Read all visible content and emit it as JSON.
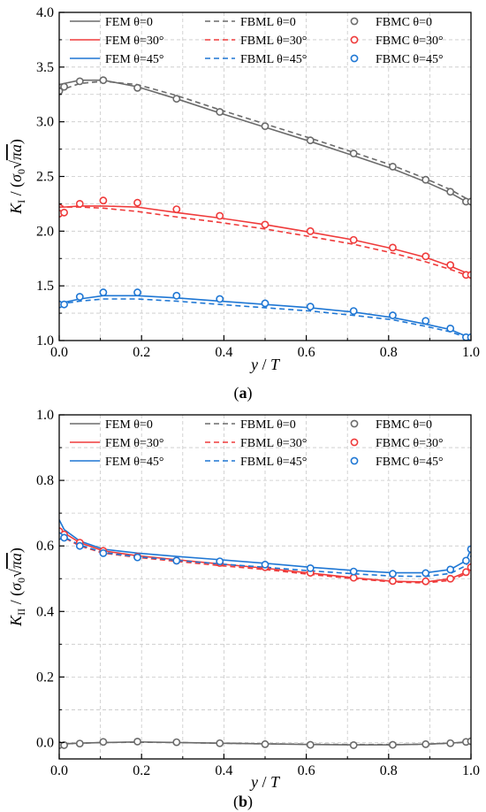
{
  "figure": {
    "panel_labels": [
      "(a)",
      "(b)"
    ]
  },
  "chart_data": [
    {
      "type": "line",
      "panel": "(a)",
      "xlabel": "y / T",
      "ylabel": "K_I / (σ0 √(πa))",
      "xlim": [
        0.0,
        1.0
      ],
      "ylim": [
        1.0,
        4.0
      ],
      "xticks": [
        "0.0",
        "0.2",
        "0.4",
        "0.6",
        "0.8",
        "1.0"
      ],
      "yticks": [
        "1.0",
        "1.5",
        "2.0",
        "2.5",
        "3.0",
        "3.5",
        "4.0"
      ],
      "grid": true,
      "legend_position": "top",
      "x": [
        0.0,
        0.012,
        0.05,
        0.107,
        0.19,
        0.285,
        0.39,
        0.5,
        0.61,
        0.715,
        0.81,
        0.89,
        0.95,
        0.988,
        1.0
      ],
      "series": [
        {
          "name": "FEM θ=0",
          "style": "solid",
          "color": "#6b6b6b",
          "values": [
            3.34,
            3.35,
            3.38,
            3.38,
            3.32,
            3.21,
            3.08,
            2.95,
            2.82,
            2.69,
            2.57,
            2.45,
            2.35,
            2.27,
            2.26
          ]
        },
        {
          "name": "FEM θ=30°",
          "style": "solid",
          "color": "#ef3b3b",
          "values": [
            2.22,
            2.22,
            2.23,
            2.23,
            2.22,
            2.17,
            2.12,
            2.06,
            1.99,
            1.92,
            1.84,
            1.76,
            1.68,
            1.62,
            1.61
          ]
        },
        {
          "name": "FEM θ=45°",
          "style": "solid",
          "color": "#1f77d4",
          "values": [
            1.34,
            1.35,
            1.38,
            1.41,
            1.41,
            1.39,
            1.36,
            1.33,
            1.3,
            1.26,
            1.21,
            1.15,
            1.1,
            1.04,
            1.05
          ]
        },
        {
          "name": "FBML θ=0",
          "style": "dashed",
          "color": "#6b6b6b",
          "values": [
            3.26,
            3.3,
            3.35,
            3.37,
            3.34,
            3.24,
            3.11,
            2.98,
            2.85,
            2.72,
            2.6,
            2.48,
            2.38,
            2.3,
            2.28
          ]
        },
        {
          "name": "FBML θ=30°",
          "style": "dashed",
          "color": "#ef3b3b",
          "values": [
            2.25,
            2.22,
            2.22,
            2.21,
            2.18,
            2.13,
            2.08,
            2.02,
            1.95,
            1.88,
            1.8,
            1.72,
            1.65,
            1.6,
            1.6
          ]
        },
        {
          "name": "FBML θ=45°",
          "style": "dashed",
          "color": "#1f77d4",
          "values": [
            1.33,
            1.34,
            1.36,
            1.38,
            1.38,
            1.36,
            1.33,
            1.3,
            1.27,
            1.23,
            1.19,
            1.13,
            1.08,
            1.03,
            1.04
          ]
        }
      ],
      "markers": {
        "x": [
          0.0,
          0.012,
          0.05,
          0.107,
          0.19,
          0.285,
          0.39,
          0.5,
          0.61,
          0.715,
          0.81,
          0.89,
          0.95,
          0.988,
          1.0
        ],
        "series": [
          {
            "name": "FBMC θ=0",
            "color": "#6b6b6b",
            "values": [
              3.28,
              3.32,
              3.37,
              3.38,
              3.31,
              3.21,
              3.09,
              2.96,
              2.83,
              2.71,
              2.59,
              2.47,
              2.36,
              2.27,
              2.27
            ]
          },
          {
            "name": "FBMC θ=30°",
            "color": "#ef3b3b",
            "values": [
              2.16,
              2.17,
              2.25,
              2.28,
              2.26,
              2.2,
              2.14,
              2.06,
              2.0,
              1.92,
              1.85,
              1.77,
              1.69,
              1.6,
              1.6
            ]
          },
          {
            "name": "FBMC θ=45°",
            "color": "#1f77d4",
            "values": [
              1.33,
              1.33,
              1.4,
              1.44,
              1.44,
              1.41,
              1.38,
              1.34,
              1.31,
              1.27,
              1.23,
              1.18,
              1.11,
              1.03,
              1.03
            ]
          }
        ]
      }
    },
    {
      "type": "line",
      "panel": "(b)",
      "xlabel": "y / T",
      "ylabel": "K_II / (σ0 √(πa))",
      "xlim": [
        0.0,
        1.0
      ],
      "ylim": [
        -0.05,
        1.0
      ],
      "xticks": [
        "0.0",
        "0.2",
        "0.4",
        "0.6",
        "0.8",
        "1.0"
      ],
      "yticks": [
        "0.0",
        "0.2",
        "0.4",
        "0.6",
        "0.8",
        "1.0"
      ],
      "grid": true,
      "legend_position": "top",
      "x": [
        0.0,
        0.012,
        0.05,
        0.107,
        0.19,
        0.285,
        0.39,
        0.5,
        0.61,
        0.715,
        0.81,
        0.89,
        0.95,
        0.988,
        1.0
      ],
      "series": [
        {
          "name": "FEM θ=0",
          "style": "solid",
          "color": "#6b6b6b",
          "values": [
            -0.005,
            -0.004,
            -0.002,
            0.0,
            0.002,
            0.0,
            -0.002,
            -0.004,
            -0.006,
            -0.007,
            -0.007,
            -0.005,
            -0.002,
            0.002,
            0.004
          ]
        },
        {
          "name": "FEM θ=30°",
          "style": "solid",
          "color": "#ef3b3b",
          "values": [
            0.655,
            0.64,
            0.61,
            0.585,
            0.57,
            0.558,
            0.545,
            0.532,
            0.517,
            0.503,
            0.492,
            0.49,
            0.5,
            0.52,
            0.535
          ]
        },
        {
          "name": "FEM θ=45°",
          "style": "solid",
          "color": "#1f77d4",
          "values": [
            0.68,
            0.65,
            0.615,
            0.59,
            0.578,
            0.568,
            0.558,
            0.547,
            0.535,
            0.525,
            0.518,
            0.518,
            0.528,
            0.555,
            0.59
          ]
        },
        {
          "name": "FBML θ=0",
          "style": "dashed",
          "color": "#6b6b6b",
          "values": [
            -0.004,
            -0.004,
            -0.002,
            0.0,
            0.001,
            0.0,
            -0.002,
            -0.004,
            -0.005,
            -0.006,
            -0.006,
            -0.005,
            -0.002,
            0.001,
            0.003
          ]
        },
        {
          "name": "FBML θ=30°",
          "style": "dashed",
          "color": "#ef3b3b",
          "values": [
            0.64,
            0.625,
            0.6,
            0.578,
            0.565,
            0.553,
            0.54,
            0.528,
            0.513,
            0.5,
            0.49,
            0.487,
            0.495,
            0.515,
            0.53
          ]
        },
        {
          "name": "FBML θ=45°",
          "style": "dashed",
          "color": "#1f77d4",
          "values": [
            0.64,
            0.627,
            0.603,
            0.58,
            0.567,
            0.556,
            0.545,
            0.535,
            0.524,
            0.515,
            0.508,
            0.507,
            0.516,
            0.54,
            0.57
          ]
        }
      ],
      "markers": {
        "x": [
          0.0,
          0.012,
          0.05,
          0.107,
          0.19,
          0.285,
          0.39,
          0.5,
          0.61,
          0.715,
          0.81,
          0.89,
          0.95,
          0.988,
          1.0
        ],
        "series": [
          {
            "name": "FBMC θ=0",
            "color": "#6b6b6b",
            "values": [
              -0.008,
              -0.008,
              -0.003,
              0.002,
              0.003,
              0.001,
              -0.002,
              -0.005,
              -0.007,
              -0.008,
              -0.007,
              -0.005,
              -0.002,
              0.002,
              0.004
            ]
          },
          {
            "name": "FBMC θ=30°",
            "color": "#ef3b3b",
            "values": [
              0.645,
              0.635,
              0.61,
              0.585,
              0.567,
              0.555,
              0.548,
              0.535,
              0.518,
              0.503,
              0.493,
              0.492,
              0.5,
              0.52,
              0.535
            ]
          },
          {
            "name": "FBMC θ=45°",
            "color": "#1f77d4",
            "values": [
              0.63,
              0.625,
              0.6,
              0.578,
              0.565,
              0.555,
              0.553,
              0.543,
              0.532,
              0.522,
              0.515,
              0.517,
              0.528,
              0.555,
              0.59
            ]
          }
        ]
      }
    }
  ]
}
